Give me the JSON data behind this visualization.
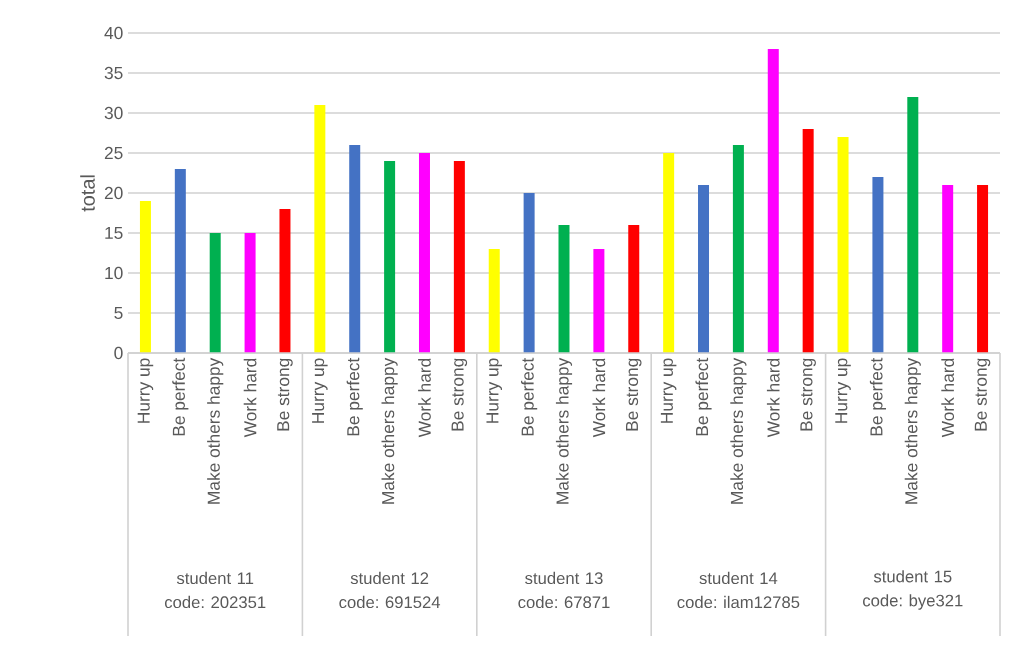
{
  "chart_data": {
    "type": "bar",
    "ylabel": "total",
    "categories": [
      "Hurry up",
      "Be perfect",
      "Make others happy",
      "Work hard",
      "Be strong",
      "Hurry up",
      "Be perfect",
      "Make others happy",
      "Work hard",
      "Be strong",
      "Hurry up",
      "Be perfect",
      "Make others happy",
      "Work hard",
      "Be strong",
      "Hurry up",
      "Be perfect",
      "Make others happy",
      "Work hard",
      "Be strong",
      "Hurry up",
      "Be perfect",
      "Make others happy",
      "Work hard",
      "Be strong"
    ],
    "values": [
      19,
      23,
      15,
      15,
      18,
      31,
      26,
      24,
      25,
      24,
      13,
      20,
      16,
      13,
      16,
      25,
      21,
      26,
      38,
      28,
      27,
      22,
      32,
      21,
      21
    ],
    "colors": [
      "#ffff00",
      "#4472c4",
      "#00b050",
      "#ff00ff",
      "#ff0000",
      "#ffff00",
      "#4472c4",
      "#00b050",
      "#ff00ff",
      "#ff0000",
      "#ffff00",
      "#4472c4",
      "#00b050",
      "#ff00ff",
      "#ff0000",
      "#ffff00",
      "#4472c4",
      "#00b050",
      "#ff00ff",
      "#ff0000",
      "#ffff00",
      "#4472c4",
      "#00b050",
      "#ff00ff",
      "#ff0000"
    ],
    "ylim": [
      0,
      40
    ],
    "yticks": [
      0,
      5,
      10,
      15,
      20,
      25,
      30,
      35,
      40
    ],
    "grid": "y",
    "annotations": [
      "student 11 code: 202351",
      "student 12 code: 691524",
      "student 13 code: 67871",
      "student 14 code: ilam12785",
      "student 15 code: bye321"
    ]
  }
}
